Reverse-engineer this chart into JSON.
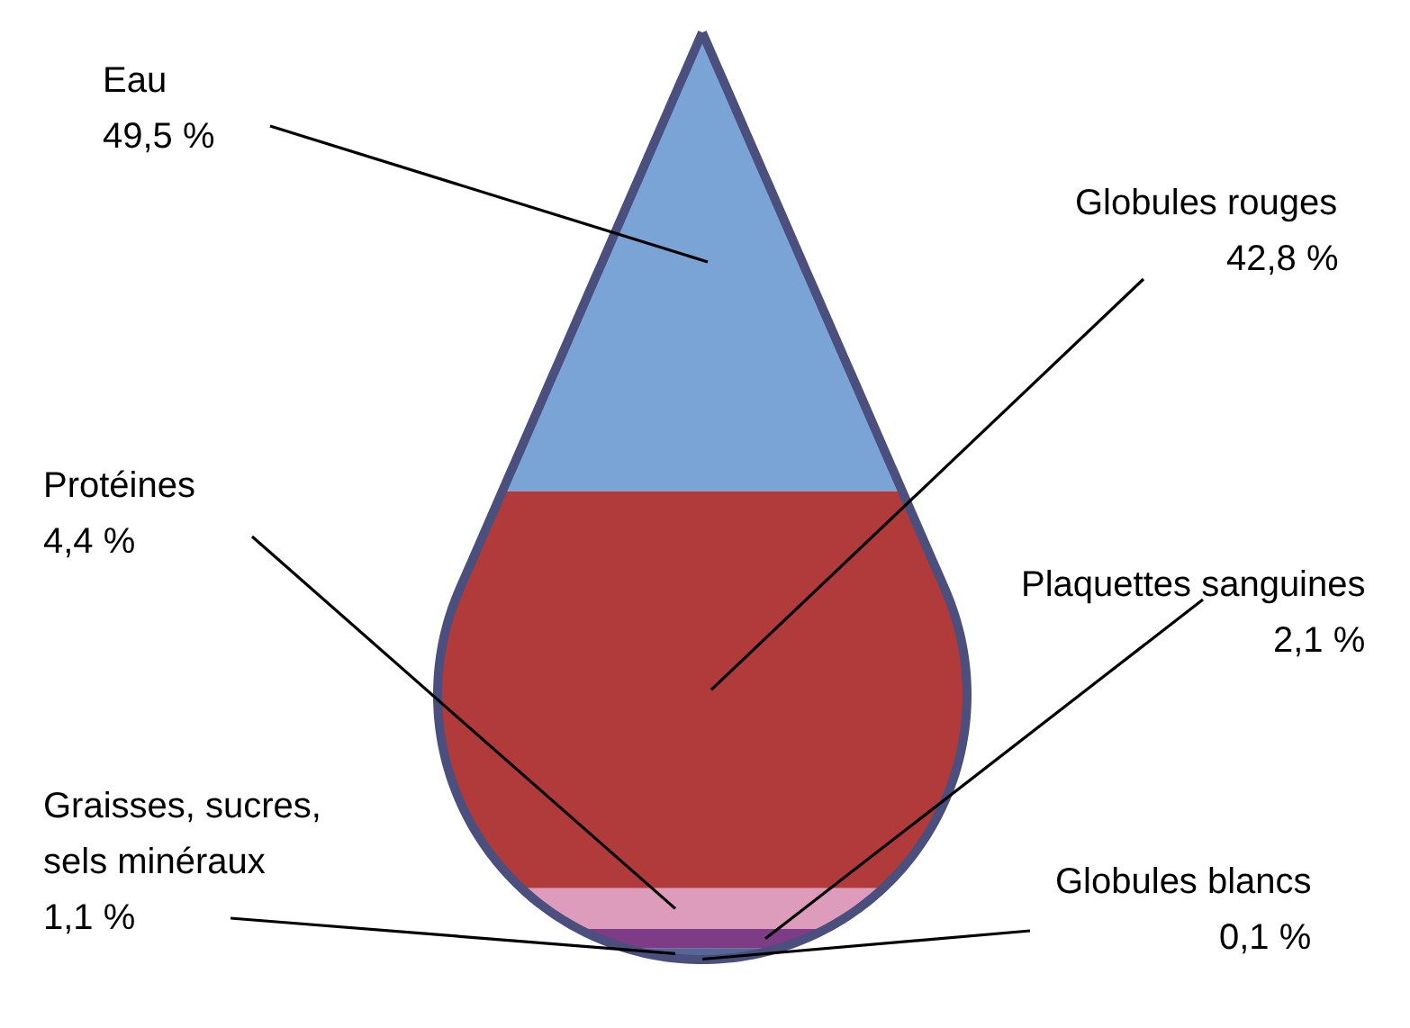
{
  "chart_data": {
    "type": "other",
    "categories": [
      "Eau",
      "Globules rouges",
      "Protéines",
      "Plaquettes sanguines",
      "Graisses, sucres,\nsels minéraux",
      "Globules blancs"
    ],
    "values": [
      49.5,
      42.8,
      4.4,
      2.1,
      1.1,
      0.1
    ],
    "value_labels": [
      "49,5 %",
      "42,8 %",
      "4,4 %",
      "2,1 %",
      "1,1 %",
      "0,1 %"
    ],
    "colors": [
      "#7aa3d6",
      "#b13b3b",
      "#dd9cbc",
      "#7e3c86",
      "#546896",
      "#ffffff"
    ]
  }
}
